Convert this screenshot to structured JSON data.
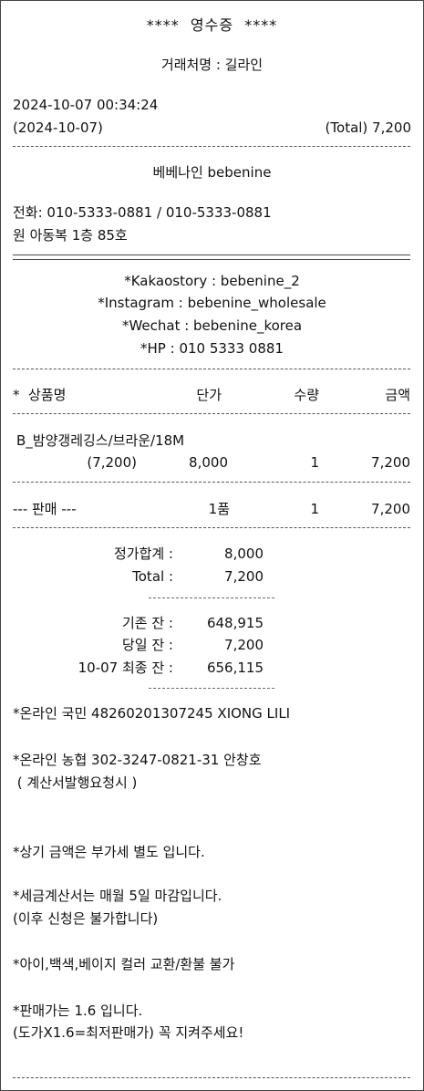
{
  "header": {
    "title": "****  영수증  ****",
    "client": "거래처명 : 길라인",
    "datetime": "2024-10-07 00:34:24",
    "date": "(2024-10-07)",
    "total": "(Total) 7,200"
  },
  "store": {
    "name": "베베나인 bebenine",
    "phone": "전화: 010-5333-0881 / 010-5333-0881",
    "address": "원 아동복 1층 85호"
  },
  "social": {
    "kakao": "*Kakaostory : bebenine_2",
    "instagram": "*Instagram : bebenine_wholesale",
    "wechat": "*Wechat : bebenine_korea",
    "hp": "*HP : 010 5333 0881"
  },
  "table": {
    "headers": [
      "*  상품명",
      "단가",
      "수량",
      "금액"
    ],
    "item": {
      "name": "B_밤양갱레깅스/브라운/18M",
      "sale_price": "(7,200)",
      "unit_price": "8,000",
      "qty": "1",
      "amount": "7,200"
    },
    "sale_row": {
      "label": "--- 판매 ---",
      "kinds": "1품",
      "qty": "1",
      "amount": "7,200"
    }
  },
  "totals": {
    "list_sum_label": "정가합계 :",
    "list_sum_value": "8,000",
    "total_label": "Total :",
    "total_value": "7,200",
    "prev_balance_label": "기존 잔 :",
    "prev_balance_value": "648,915",
    "today_balance_label": "당일 잔 :",
    "today_balance_value": "7,200",
    "final_balance_label": "10-07 최종 잔 :",
    "final_balance_value": "656,115"
  },
  "notes": {
    "bank1": "*온라인 국민 48260201307245 XIONG LILI",
    "bank2": "*온라인 농협 302-3247-0821-31 안창호",
    "bank2_sub": " ( 계산서발행요청시 )",
    "vat": "*상기 금액은 부가세 별도 입니다.",
    "invoice1": "*세금계산서는 매월 5일 마감입니다.",
    "invoice2": "(이후 신청은 불가합니다)",
    "exchange": "*아이,백색,베이지 컬러 교환/환불 불가",
    "price1": "*판매가는 1.6 입니다.",
    "price2": "(도가X1.6=최저판매가) 꼭 지켜주세요!"
  }
}
